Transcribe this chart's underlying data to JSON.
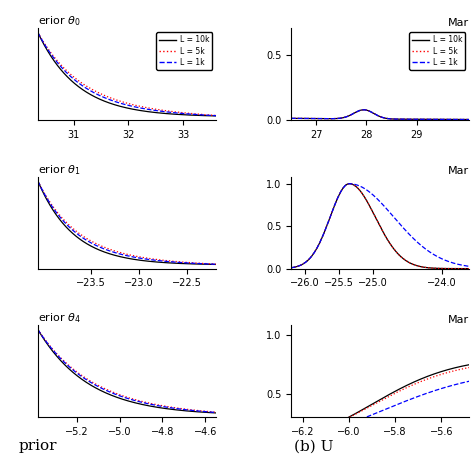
{
  "legend_labels": [
    "L = 10k",
    "L = 5k",
    "L = 1k"
  ],
  "line_colors": [
    "black",
    "red",
    "blue"
  ],
  "line_styles": [
    "-",
    ":",
    "--"
  ],
  "bottom_left_label": "prior",
  "bottom_right_label": "(b) U",
  "row0_left": {
    "xlim": [
      30.35,
      33.6
    ],
    "xticks": [
      31,
      32,
      33
    ],
    "title": "erior $\\boldsymbol{\\theta_0}$"
  },
  "row0_right": {
    "xlim": [
      26.5,
      30.05
    ],
    "ylim": [
      0,
      0.7
    ],
    "yticks": [
      0,
      0.5
    ],
    "xticks": [
      27,
      28,
      29
    ],
    "title": "Mar"
  },
  "row1_left": {
    "xlim": [
      -24.05,
      -22.2
    ],
    "xticks": [
      -23.5,
      -23.0,
      -22.5
    ],
    "title": "erior $\\boldsymbol{\\theta_1}$"
  },
  "row1_right": {
    "xlim": [
      -26.2,
      -23.6
    ],
    "ylim": [
      0,
      1.08
    ],
    "yticks": [
      0,
      0.5,
      1
    ],
    "xticks": [
      -26,
      -25.5,
      -25,
      -24
    ],
    "title": "Mar"
  },
  "row2_left": {
    "xlim": [
      -5.38,
      -4.55
    ],
    "xticks": [
      -5.2,
      -5.0,
      -4.8,
      -4.6
    ],
    "title": "erior $\\boldsymbol{\\theta_4}$"
  },
  "row2_right": {
    "xlim": [
      -6.25,
      -5.48
    ],
    "ylim": [
      0.3,
      1.08
    ],
    "yticks": [
      0.5,
      1
    ],
    "xticks": [
      -6.2,
      -6.0,
      -5.8,
      -5.6
    ],
    "title": "Mar"
  }
}
